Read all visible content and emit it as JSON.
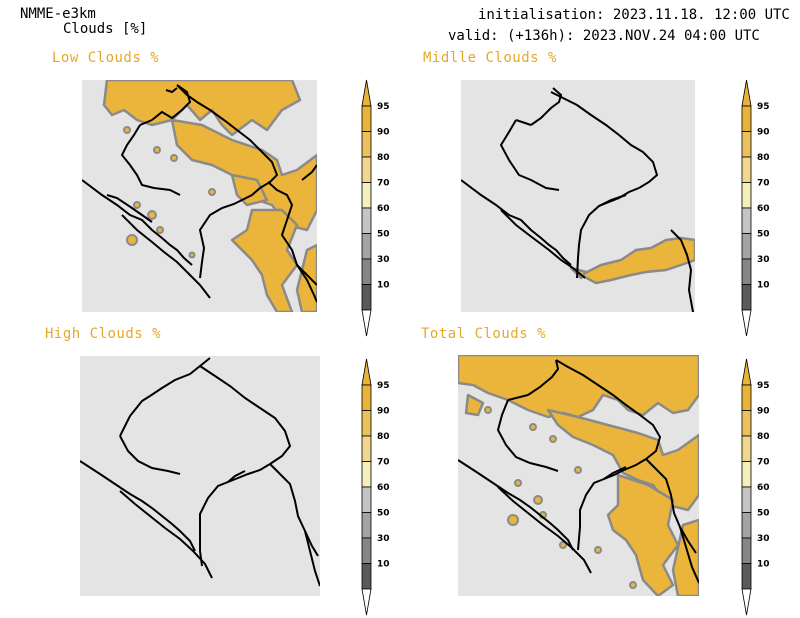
{
  "header": {
    "model": "NMME-e3km",
    "variable": "Clouds [%]",
    "init": "initialisation: 2023.11.18. 12:00 UTC",
    "valid": "valid: (+136h): 2023.NOV.24 04:00 UTC"
  },
  "panels": [
    {
      "title": "Low Clouds %"
    },
    {
      "title": "Midlle Clouds %"
    },
    {
      "title": "High Clouds %"
    },
    {
      "title": "Total Clouds %"
    }
  ],
  "colorbar": {
    "ticks": [
      "95",
      "90",
      "80",
      "70",
      "60",
      "50",
      "30",
      "10"
    ],
    "colors": [
      "#e8b33a",
      "#ebc15e",
      "#f0d68f",
      "#f5efbc",
      "#c4c4c4",
      "#a4a4a4",
      "#868686",
      "#5a5a5a"
    ],
    "top_color": "#e8b33a",
    "bottom_color": "#ffffff"
  },
  "colors": {
    "title_accent": "#e6a82c",
    "cloud": "#ebb53b",
    "cloud_edge": "#8a8a8a",
    "land": "#e4e4e4",
    "border": "#000000"
  }
}
